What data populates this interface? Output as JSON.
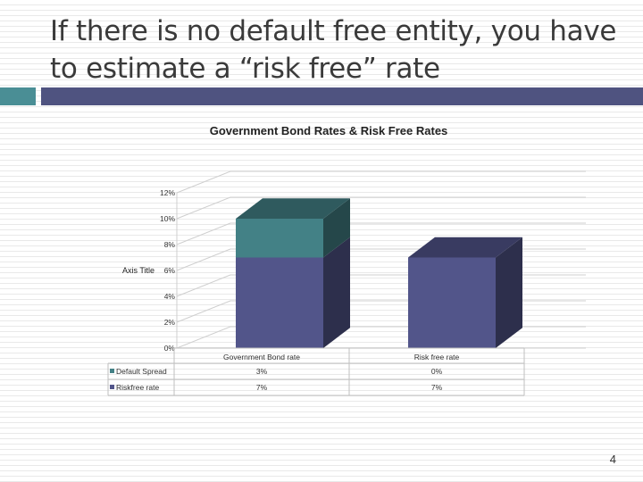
{
  "slide": {
    "title_line1": "If there is no default free entity, you have",
    "title_line2": "to estimate a “risk free” rate",
    "page_number": "4"
  },
  "colors": {
    "accent_teal": "#4a8e95",
    "accent_navy": "#4f5380",
    "risk_free": "#52558a",
    "default_spread": "#438186"
  },
  "chart_data": {
    "type": "bar",
    "stacked": true,
    "three_d": true,
    "title": "Government Bond Rates & Risk Free Rates",
    "ylabel": "Axis Title",
    "ylim": [
      0,
      12
    ],
    "yticks": [
      "0%",
      "2%",
      "4%",
      "6%",
      "8%",
      "10%",
      "12%"
    ],
    "categories": [
      "Government Bond rate",
      "Risk free rate"
    ],
    "series": [
      {
        "name": "Default Spread",
        "values": [
          3,
          0
        ],
        "labels": [
          "3%",
          "0%"
        ],
        "color": "#438186"
      },
      {
        "name": "Riskfree rate",
        "values": [
          7,
          7
        ],
        "labels": [
          "7%",
          "7%"
        ],
        "color": "#52558a"
      }
    ],
    "legend": "data-table"
  }
}
